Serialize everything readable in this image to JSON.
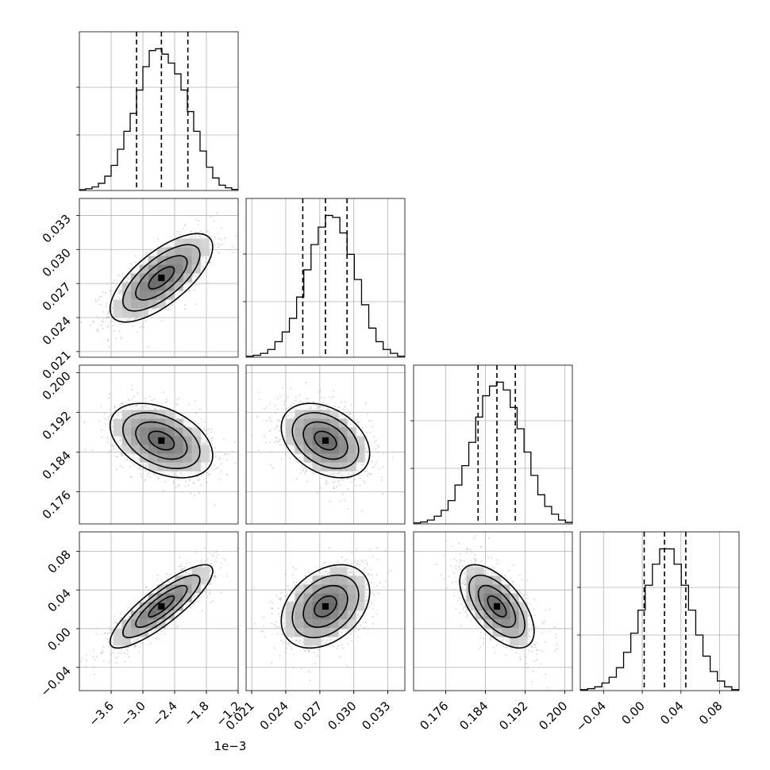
{
  "chart_data": {
    "type": "corner",
    "grid": true,
    "params": [
      {
        "range": [
          -4.2,
          -1.2
        ],
        "ticks": [
          -3.6,
          -3.0,
          -2.4,
          -1.8,
          -1.2
        ],
        "tick_labels": [
          "−3.6",
          "−3.0",
          "−2.4",
          "−1.8",
          "−1.2"
        ],
        "offset_label": "1e−3",
        "median": -2.65,
        "q16": -3.12,
        "q84": -2.15,
        "hist": [
          0.5,
          1,
          2,
          4,
          8,
          14,
          23,
          33,
          43,
          56,
          69,
          78,
          79,
          76,
          71,
          65,
          56,
          44,
          33,
          22,
          13,
          7,
          3,
          1.5,
          0.6
        ]
      },
      {
        "range": [
          0.0205,
          0.0345
        ],
        "ticks": [
          0.021,
          0.024,
          0.027,
          0.03,
          0.033
        ],
        "tick_labels": [
          "0.021",
          "0.024",
          "0.027",
          "0.030",
          "0.033"
        ],
        "offset_label": "",
        "median": 0.0275,
        "q16": 0.0255,
        "q84": 0.0294,
        "hist": [
          0.5,
          1,
          2,
          4,
          8,
          13,
          20,
          31,
          45,
          58,
          67,
          73,
          72,
          64,
          53,
          40,
          27,
          15,
          8,
          4,
          2,
          0.5
        ]
      },
      {
        "range": [
          0.1695,
          0.2015
        ],
        "ticks": [
          0.176,
          0.184,
          0.192,
          0.2
        ],
        "tick_labels": [
          "0.176",
          "0.184",
          "0.192",
          "0.200"
        ],
        "offset_label": "",
        "median": 0.1863,
        "q16": 0.1825,
        "q84": 0.19,
        "hist": [
          0.5,
          1,
          2,
          4,
          7,
          12,
          20,
          30,
          42,
          55,
          66,
          71,
          73,
          69,
          60,
          49,
          37,
          25,
          15,
          9,
          5,
          2,
          0.8
        ]
      },
      {
        "range": [
          -0.064,
          0.1
        ],
        "ticks": [
          -0.04,
          0.0,
          0.04,
          0.08
        ],
        "tick_labels": [
          "−0.04",
          "0.00",
          "0.04",
          "0.08"
        ],
        "offset_label": "",
        "median": 0.023,
        "q16": 0.002,
        "q84": 0.045,
        "hist": [
          0.5,
          1,
          2,
          4,
          7,
          12,
          20,
          30,
          42,
          55,
          66,
          74,
          74,
          66,
          55,
          42,
          29,
          18,
          10,
          5,
          2,
          0.5
        ]
      }
    ],
    "pairs": [
      {
        "row": 1,
        "col": 0,
        "corr": 0.7
      },
      {
        "row": 2,
        "col": 0,
        "corr": -0.4
      },
      {
        "row": 2,
        "col": 1,
        "corr": -0.35
      },
      {
        "row": 3,
        "col": 0,
        "corr": 0.85
      },
      {
        "row": 3,
        "col": 1,
        "corr": 0.35
      },
      {
        "row": 3,
        "col": 2,
        "corr": -0.6
      }
    ]
  }
}
